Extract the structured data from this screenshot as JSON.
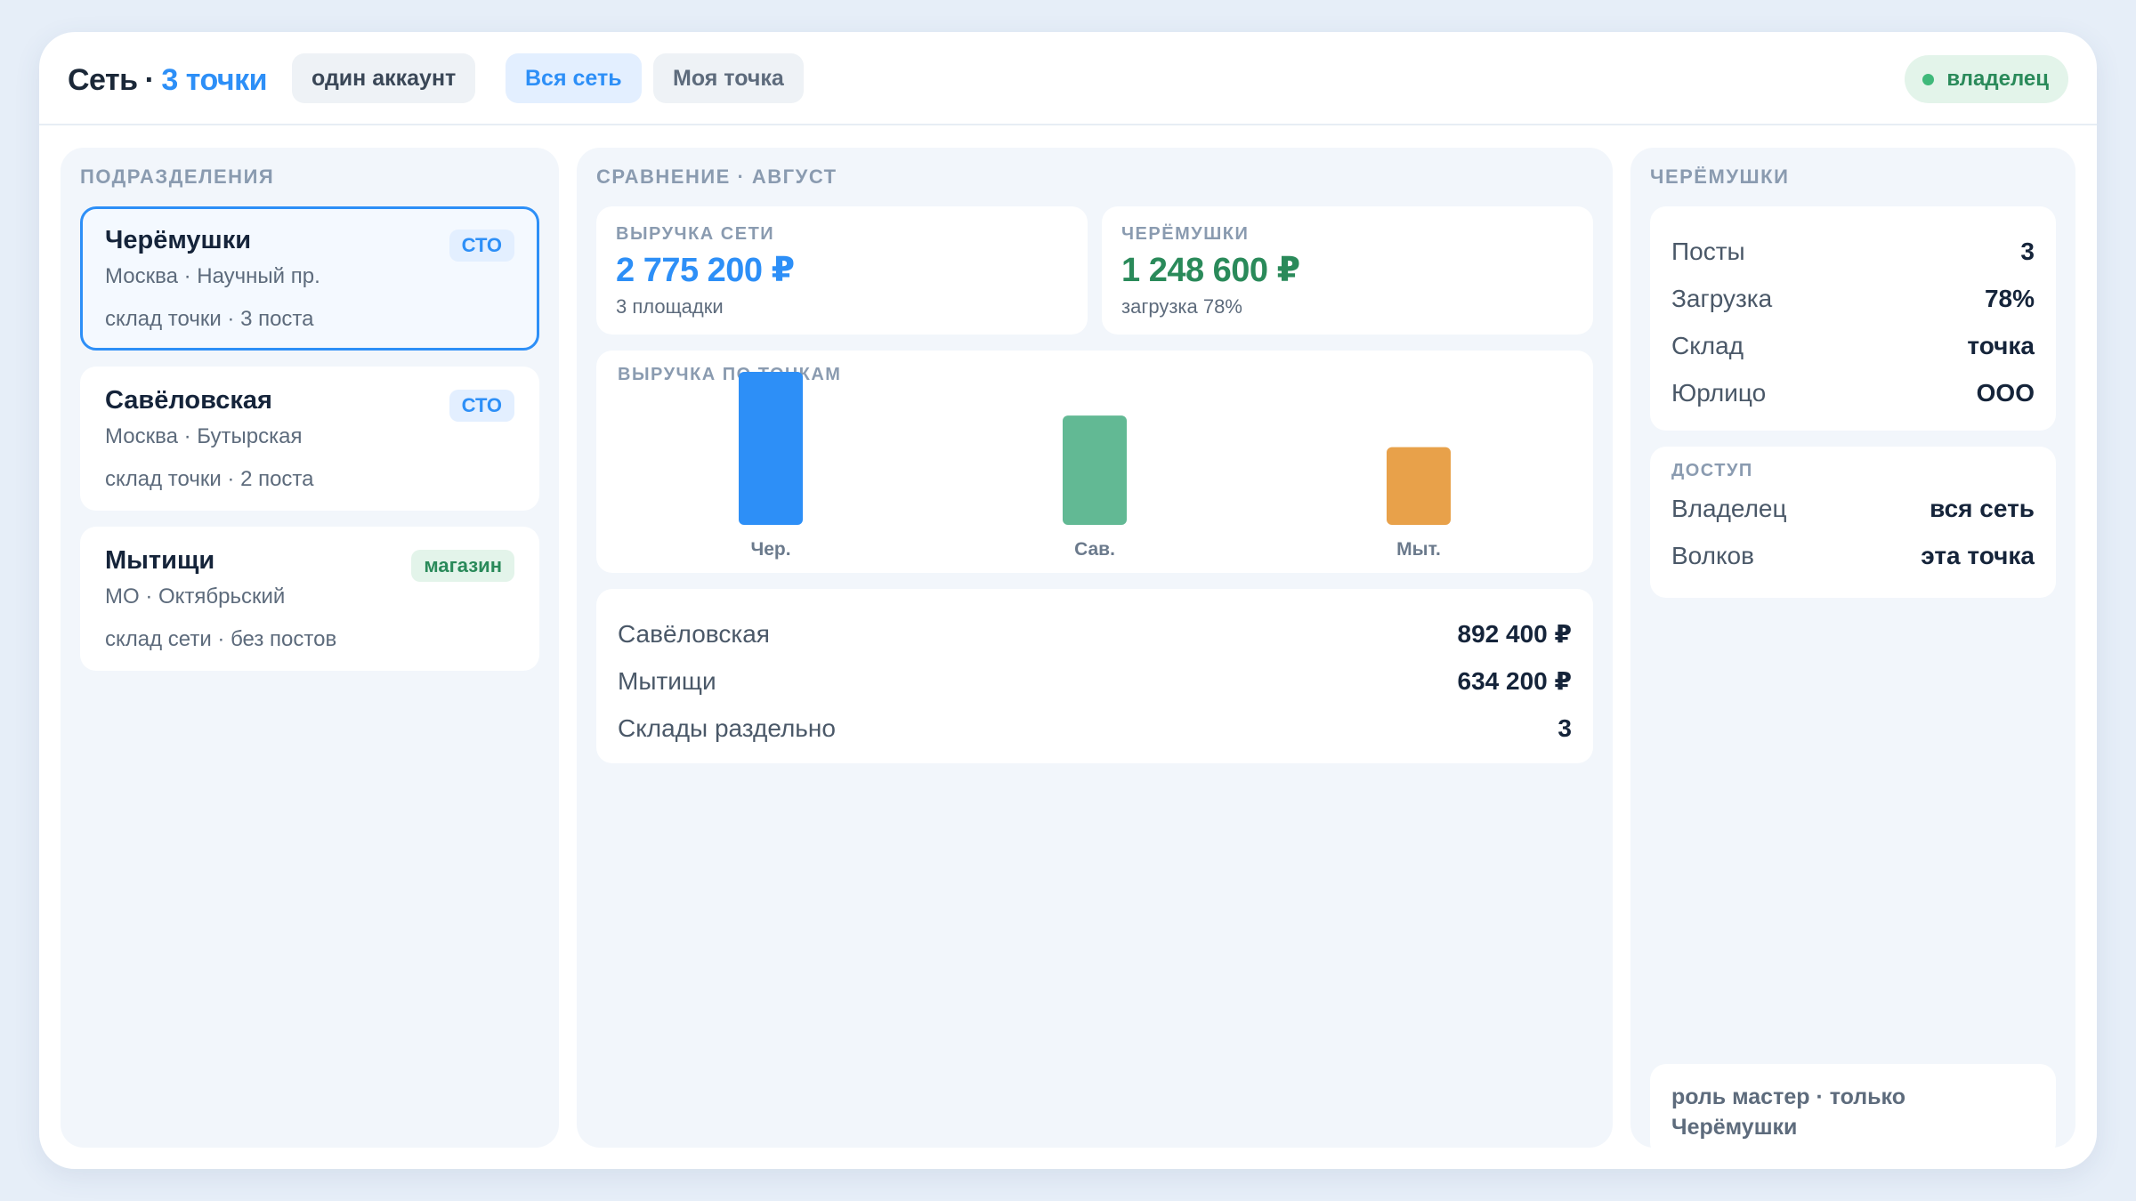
{
  "header": {
    "brand": "Сеть",
    "separator": "·",
    "count": "3 точки",
    "account_chip": "один аккаунт",
    "scope_all": "Вся сеть",
    "scope_mine": "Моя точка",
    "role": "владелец"
  },
  "left": {
    "title": "ПОДРАЗДЕЛЕНИЯ",
    "units": [
      {
        "name": "Черёмушки",
        "location": "Москва · Научный пр.",
        "meta": "склад точки · 3 поста",
        "tag": "СТО",
        "selected": true
      },
      {
        "name": "Савёловская",
        "location": "Москва · Бутырская",
        "meta": "склад точки · 2 поста",
        "tag": "СТО",
        "selected": false
      },
      {
        "name": "Мытищи",
        "location": "МО · Октябрьский",
        "meta": "склад сети · без постов",
        "tag": "магазин",
        "selected": false
      }
    ]
  },
  "middle": {
    "title": "СРАВНЕНИЕ · АВГУСТ",
    "kpi_network": {
      "label": "ВЫРУЧКА СЕТИ",
      "value": "2 775 200 ₽",
      "sub": "3 площадки"
    },
    "kpi_unit": {
      "label": "ЧЕРЁМУШКИ",
      "value": "1 248 600 ₽",
      "sub": "загрузка 78%"
    },
    "summary": [
      {
        "label": "Савёловская",
        "value": "892 400 ₽"
      },
      {
        "label": "Мытищи",
        "value": "634 200 ₽"
      },
      {
        "label": "Склады раздельно",
        "value": "3"
      }
    ]
  },
  "chart_data": {
    "type": "bar",
    "title": "ВЫРУЧКА ПО ТОЧКАМ",
    "categories": [
      "Чер.",
      "Сав.",
      "Мыт."
    ],
    "values": [
      1248600,
      892400,
      634200
    ],
    "colors": [
      "#2d8ff7",
      "#62b994",
      "#e8a14a"
    ],
    "ylim": [
      0,
      1248600
    ],
    "grid": false,
    "legend": "none"
  },
  "right": {
    "title": "ЧЕРЁМУШКИ",
    "props": [
      {
        "label": "Посты",
        "value": "3"
      },
      {
        "label": "Загрузка",
        "value": "78%"
      },
      {
        "label": "Склад",
        "value": "точка"
      },
      {
        "label": "Юрлицо",
        "value": "ООО"
      }
    ],
    "access_title": "ДОСТУП",
    "access": [
      {
        "label": "Владелец",
        "value": "вся сеть"
      },
      {
        "label": "Волков",
        "value": "эта точка"
      }
    ],
    "note": "роль мастер · только Черёмушки"
  }
}
